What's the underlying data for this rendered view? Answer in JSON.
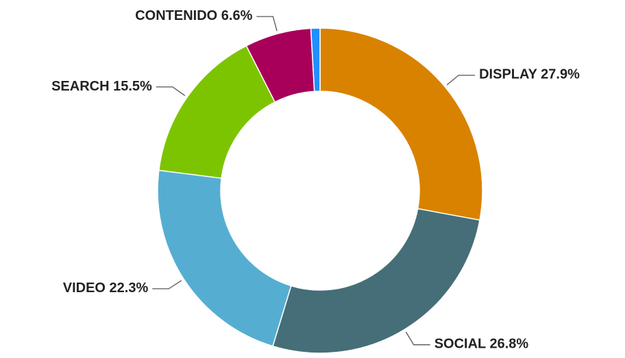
{
  "chart_data": {
    "type": "donut",
    "categories": [
      "DISPLAY",
      "SOCIAL",
      "VIDEO",
      "SEARCH",
      "CONTENIDO",
      null
    ],
    "values": [
      27.9,
      26.8,
      22.3,
      15.5,
      6.6,
      0.9
    ],
    "value_labels": [
      "27.9%",
      "26.8%",
      "22.3%",
      "15.5%",
      "6.6%",
      null
    ],
    "colors": [
      "#d98200",
      "#466e78",
      "#55aed2",
      "#7dc400",
      "#a8005a",
      "#1e90ff"
    ]
  }
}
